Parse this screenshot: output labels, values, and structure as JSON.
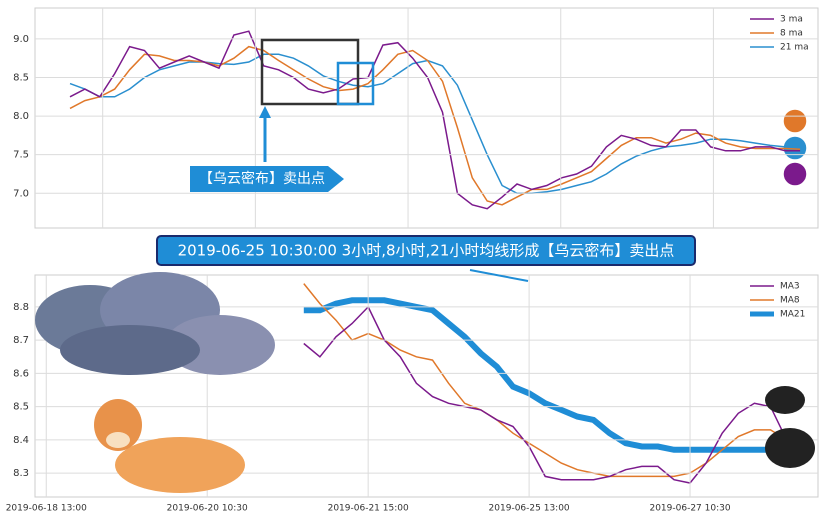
{
  "chart_data": [
    {
      "type": "line",
      "legend": "upper right",
      "grid": true,
      "xlim": [
        -2.35,
        50.2
      ],
      "ylim": [
        6.55,
        9.4
      ],
      "yticks": [
        {
          "value": 7,
          "label": "7.0"
        },
        7.5,
        {
          "value": 8,
          "label": "8.0"
        },
        8.5,
        {
          "value": 9,
          "label": "9.0"
        }
      ],
      "x": [
        0,
        1,
        2,
        3,
        4,
        5,
        6,
        7,
        8,
        9,
        10,
        11,
        12,
        13,
        14,
        15,
        16,
        17,
        18,
        19,
        20,
        21,
        22,
        23,
        24,
        25,
        26,
        27,
        28,
        29,
        30,
        31,
        32,
        33,
        34,
        35,
        36,
        37,
        38,
        39,
        40,
        41,
        42,
        43,
        44,
        45,
        46,
        47,
        48,
        49
      ],
      "series": [
        {
          "name": "3 ma",
          "badge": "3",
          "color": "#7b1a8c",
          "line_width": 1.5,
          "values": [
            8.25,
            8.35,
            8.25,
            8.55,
            8.9,
            8.85,
            8.62,
            8.7,
            8.78,
            8.7,
            8.62,
            9.05,
            9.1,
            8.65,
            8.6,
            8.5,
            8.35,
            8.3,
            8.35,
            8.48,
            8.5,
            8.92,
            8.95,
            8.75,
            8.5,
            8.05,
            7.0,
            6.85,
            6.8,
            6.95,
            7.12,
            7.05,
            7.1,
            7.2,
            7.25,
            7.35,
            7.6,
            7.75,
            7.7,
            7.62,
            7.6,
            7.82,
            7.82,
            7.6,
            7.55,
            7.55,
            7.6,
            7.6,
            7.55,
            7.55
          ]
        },
        {
          "name": "8 ma",
          "badge": "8",
          "color": "#e0782a",
          "line_width": 1.5,
          "values": [
            8.1,
            8.2,
            8.25,
            8.35,
            8.6,
            8.8,
            8.78,
            8.72,
            8.72,
            8.7,
            8.65,
            8.75,
            8.9,
            8.85,
            8.72,
            8.6,
            8.48,
            8.38,
            8.33,
            8.35,
            8.42,
            8.6,
            8.8,
            8.85,
            8.72,
            8.45,
            7.85,
            7.2,
            6.9,
            6.85,
            6.95,
            7.05,
            7.05,
            7.12,
            7.2,
            7.28,
            7.45,
            7.62,
            7.72,
            7.72,
            7.65,
            7.7,
            7.78,
            7.75,
            7.65,
            7.6,
            7.58,
            7.58,
            7.58,
            7.57
          ]
        },
        {
          "name": "21 ma",
          "badge": "21",
          "color": "#2a8fcf",
          "line_width": 1.5,
          "values": [
            8.42,
            8.35,
            8.25,
            8.25,
            8.35,
            8.5,
            8.6,
            8.65,
            8.7,
            8.7,
            8.68,
            8.67,
            8.7,
            8.8,
            8.8,
            8.75,
            8.65,
            8.52,
            8.45,
            8.4,
            8.38,
            8.42,
            8.55,
            8.68,
            8.72,
            8.65,
            8.4,
            7.95,
            7.5,
            7.1,
            7.0,
            7.0,
            7.02,
            7.05,
            7.1,
            7.15,
            7.25,
            7.38,
            7.48,
            7.55,
            7.6,
            7.62,
            7.65,
            7.7,
            7.7,
            7.68,
            7.65,
            7.62,
            7.6,
            7.58
          ]
        }
      ],
      "annotations": [
        "【乌云密布】卖出点",
        "2019-06-25 10:30:00 3小时,8小时,21小时均线形成【乌云密布】卖出点"
      ]
    },
    {
      "type": "line",
      "legend": "upper right",
      "grid": true,
      "xlim": [
        -0.7,
        47.95
      ],
      "ylim": [
        8.228,
        8.896
      ],
      "yticks": [
        8.3,
        8.4,
        8.5,
        8.6,
        8.7,
        8.8
      ],
      "xticks": [
        {
          "value": 0,
          "label": "2019-06-18 13:00"
        },
        {
          "value": 10,
          "label": "2019-06-20 10:30"
        },
        {
          "value": 20,
          "label": "2019-06-21 15:00"
        },
        {
          "value": 30,
          "label": "2019-06-25 13:00"
        },
        {
          "value": 40,
          "label": "2019-06-27 10:30"
        }
      ],
      "x": [
        16,
        17,
        18,
        19,
        20,
        21,
        22,
        23,
        24,
        25,
        26,
        27,
        28,
        29,
        30,
        31,
        32,
        33,
        34,
        35,
        36,
        37,
        38,
        39,
        40,
        41,
        42,
        43,
        44,
        45,
        46,
        47
      ],
      "series": [
        {
          "name": "MA3",
          "color": "#7b1a8c",
          "line_width": 1.5,
          "values": [
            8.69,
            8.65,
            8.71,
            8.75,
            8.8,
            8.7,
            8.65,
            8.57,
            8.53,
            8.51,
            8.5,
            8.49,
            8.46,
            8.44,
            8.38,
            8.29,
            8.28,
            8.28,
            8.28,
            8.29,
            8.31,
            8.32,
            8.32,
            8.28,
            8.27,
            8.33,
            8.42,
            8.48,
            8.51,
            8.5,
            8.4,
            8.38
          ]
        },
        {
          "name": "MA8",
          "color": "#e0782a",
          "line_width": 1.5,
          "values": [
            8.87,
            8.81,
            8.76,
            8.7,
            8.72,
            8.7,
            8.67,
            8.65,
            8.64,
            8.57,
            8.51,
            8.49,
            8.46,
            8.42,
            8.39,
            8.36,
            8.33,
            8.31,
            8.3,
            8.29,
            8.29,
            8.29,
            8.29,
            8.29,
            8.3,
            8.33,
            8.37,
            8.41,
            8.43,
            8.43,
            8.4,
            8.38
          ]
        },
        {
          "name": "MA21",
          "color": "#1f8dd6",
          "line_width": 6,
          "values": [
            8.79,
            8.79,
            8.81,
            8.82,
            8.82,
            8.82,
            8.81,
            8.8,
            8.79,
            8.75,
            8.71,
            8.66,
            8.62,
            8.56,
            8.54,
            8.51,
            8.49,
            8.47,
            8.46,
            8.42,
            8.39,
            8.38,
            8.38,
            8.37,
            8.37,
            8.37,
            8.37,
            8.37,
            8.37,
            8.37,
            8.37,
            8.37
          ]
        }
      ]
    }
  ]
}
